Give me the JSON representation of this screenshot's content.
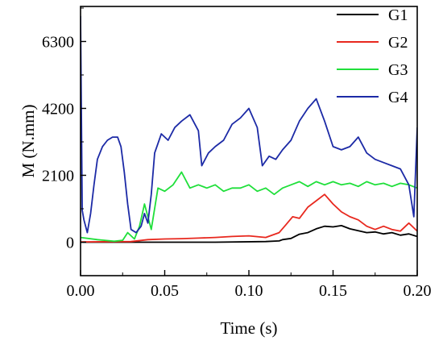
{
  "chart_data": {
    "type": "line",
    "xlabel": "Time (s)",
    "ylabel": "M (N.mm)",
    "xlim": [
      0,
      0.2
    ],
    "ylim": [
      -1050,
      7400
    ],
    "x_ticks": [
      0.0,
      0.05,
      0.1,
      0.15,
      0.2
    ],
    "x_tick_labels": [
      "0.00",
      "0.05",
      "0.10",
      "0.15",
      "0.20"
    ],
    "y_ticks": [
      0,
      2100,
      4200,
      6300
    ],
    "y_tick_labels": [
      "0",
      "2100",
      "4200",
      "6300"
    ],
    "grid": false,
    "legend_position": "top-right",
    "series": [
      {
        "name": "G1",
        "color": "#000000",
        "x": [
          0.0,
          0.04,
          0.08,
          0.11,
          0.118,
          0.12,
          0.125,
          0.13,
          0.135,
          0.14,
          0.145,
          0.15,
          0.155,
          0.16,
          0.165,
          0.17,
          0.175,
          0.18,
          0.185,
          0.19,
          0.195,
          0.2
        ],
        "y": [
          0,
          0,
          0,
          20,
          40,
          80,
          120,
          250,
          300,
          420,
          500,
          480,
          520,
          420,
          360,
          300,
          320,
          260,
          300,
          220,
          260,
          180
        ]
      },
      {
        "name": "G2",
        "color": "#e8281e",
        "x": [
          0.0,
          0.03,
          0.04,
          0.05,
          0.06,
          0.07,
          0.08,
          0.09,
          0.1,
          0.11,
          0.118,
          0.122,
          0.126,
          0.13,
          0.135,
          0.14,
          0.145,
          0.15,
          0.155,
          0.16,
          0.165,
          0.17,
          0.175,
          0.18,
          0.185,
          0.19,
          0.195,
          0.2
        ],
        "y": [
          10,
          20,
          80,
          100,
          110,
          130,
          150,
          180,
          200,
          150,
          300,
          550,
          800,
          750,
          1100,
          1300,
          1500,
          1200,
          950,
          800,
          700,
          500,
          400,
          500,
          400,
          350,
          600,
          350
        ]
      },
      {
        "name": "G3",
        "color": "#1fdf3a",
        "x": [
          0.0,
          0.01,
          0.02,
          0.025,
          0.028,
          0.032,
          0.035,
          0.038,
          0.042,
          0.046,
          0.05,
          0.055,
          0.06,
          0.065,
          0.07,
          0.075,
          0.08,
          0.085,
          0.09,
          0.095,
          0.1,
          0.105,
          0.11,
          0.115,
          0.12,
          0.125,
          0.13,
          0.135,
          0.14,
          0.145,
          0.15,
          0.155,
          0.16,
          0.165,
          0.17,
          0.175,
          0.18,
          0.185,
          0.19,
          0.195,
          0.2
        ],
        "y": [
          150,
          80,
          30,
          60,
          300,
          100,
          500,
          1200,
          400,
          1700,
          1600,
          1800,
          2200,
          1700,
          1800,
          1700,
          1800,
          1600,
          1700,
          1700,
          1800,
          1600,
          1700,
          1500,
          1700,
          1800,
          1900,
          1750,
          1900,
          1800,
          1900,
          1800,
          1850,
          1750,
          1900,
          1800,
          1850,
          1750,
          1850,
          1800,
          1700
        ]
      },
      {
        "name": "G4",
        "color": "#1c2aa6",
        "x": [
          0.0,
          0.001,
          0.002,
          0.004,
          0.006,
          0.008,
          0.01,
          0.013,
          0.016,
          0.019,
          0.022,
          0.024,
          0.026,
          0.028,
          0.03,
          0.033,
          0.036,
          0.038,
          0.04,
          0.042,
          0.044,
          0.048,
          0.052,
          0.056,
          0.06,
          0.065,
          0.07,
          0.072,
          0.076,
          0.08,
          0.085,
          0.09,
          0.095,
          0.1,
          0.105,
          0.108,
          0.112,
          0.116,
          0.12,
          0.125,
          0.13,
          0.135,
          0.14,
          0.145,
          0.15,
          0.155,
          0.16,
          0.165,
          0.17,
          0.175,
          0.18,
          0.185,
          0.19,
          0.195,
          0.198,
          0.2
        ],
        "y": [
          7100,
          1000,
          700,
          300,
          900,
          1800,
          2600,
          3000,
          3200,
          3300,
          3300,
          3000,
          2200,
          1200,
          400,
          300,
          500,
          900,
          600,
          1500,
          2800,
          3400,
          3200,
          3600,
          3800,
          4000,
          3500,
          2400,
          2800,
          3000,
          3200,
          3700,
          3900,
          4200,
          3600,
          2400,
          2700,
          2600,
          2900,
          3200,
          3800,
          4200,
          4500,
          3800,
          3000,
          2900,
          3000,
          3300,
          2800,
          2600,
          2500,
          2400,
          2300,
          1800,
          800,
          3600
        ]
      }
    ]
  }
}
